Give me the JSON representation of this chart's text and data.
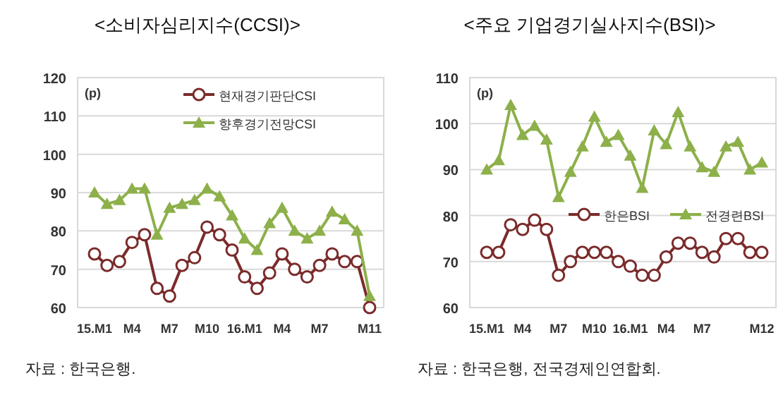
{
  "chart_data": [
    {
      "type": "line",
      "title": "<소비자심리지수(CCSI)>",
      "ylabel": "(p)",
      "categories": [
        "15.M1",
        null,
        null,
        "M4",
        null,
        null,
        "M7",
        null,
        null,
        "M10",
        null,
        null,
        "16.M1",
        null,
        null,
        "M4",
        null,
        null,
        "M7",
        null,
        null,
        null,
        "M11"
      ],
      "series": [
        {
          "name": "현재경기판단CSI",
          "color": "#7b2b2b",
          "marker": "circle",
          "values": [
            74,
            71,
            72,
            77,
            79,
            65,
            63,
            71,
            73,
            81,
            79,
            75,
            68,
            65,
            69,
            74,
            70,
            68,
            71,
            74,
            72,
            72,
            60
          ]
        },
        {
          "name": "향후경기전망CSI",
          "color": "#8db04a",
          "marker": "triangle",
          "values": [
            90,
            87,
            88,
            91,
            91,
            79,
            86,
            87,
            88,
            91,
            89,
            84,
            78,
            75,
            82,
            86,
            80,
            78,
            80,
            85,
            83,
            80,
            63
          ]
        }
      ],
      "ylim": [
        60,
        120
      ],
      "yticks": [
        60,
        70,
        80,
        90,
        100,
        110,
        120
      ],
      "grid": "y",
      "legend": "top",
      "annotations": [
        "자료 : 한국은행."
      ]
    },
    {
      "type": "line",
      "title": "<주요 기업경기실사지수(BSI)>",
      "ylabel": "(p)",
      "categories": [
        "15.M1",
        null,
        null,
        "M4",
        null,
        null,
        "M7",
        null,
        null,
        "M10",
        null,
        null,
        "16.M1",
        null,
        null,
        "M4",
        null,
        null,
        "M7",
        null,
        null,
        null,
        null,
        "M12"
      ],
      "series": [
        {
          "name": "한은BSI",
          "color": "#7b2b2b",
          "marker": "circle",
          "values": [
            72,
            72,
            78,
            77,
            79,
            77,
            67,
            70,
            72,
            72,
            72,
            70,
            69,
            67,
            67,
            71,
            74,
            74,
            72,
            71,
            75,
            75,
            72,
            72
          ]
        },
        {
          "name": "전경련BSI",
          "color": "#8db04a",
          "marker": "triangle",
          "values": [
            90,
            92,
            104,
            97.5,
            99.5,
            96.5,
            84,
            89.5,
            95,
            101.5,
            96,
            97.5,
            93,
            86,
            98.5,
            95.5,
            102.5,
            95,
            90.5,
            89.5,
            95,
            96,
            90,
            91.5
          ]
        }
      ],
      "ylim": [
        60,
        110
      ],
      "yticks": [
        60,
        70,
        80,
        90,
        100,
        110
      ],
      "grid": "y",
      "legend": "right",
      "annotations": [
        "자료 : 한국은행, 전국경제인연합회."
      ]
    }
  ]
}
